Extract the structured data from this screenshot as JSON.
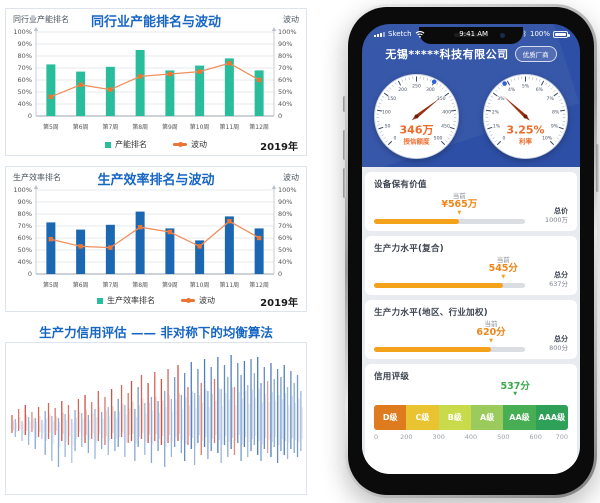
{
  "chart_data": [
    {
      "type": "bar",
      "title": "同行业产能排名与波动",
      "axis_left": "同行业产能排名",
      "axis_right": "波动",
      "categories": [
        "第5周",
        "第6周",
        "第7周",
        "第8周",
        "第9周",
        "第10周",
        "第11周",
        "第12周"
      ],
      "series": [
        {
          "name": "产能排名",
          "type": "bar",
          "values": [
            73,
            67,
            71,
            85,
            68,
            72,
            78,
            68
          ]
        },
        {
          "name": "波动",
          "type": "line",
          "values": [
            46,
            56,
            52,
            63,
            65,
            67,
            74,
            60
          ]
        }
      ],
      "yticks": [
        "100%",
        "90%",
        "80%",
        "70%",
        "60%",
        "50%",
        "40%",
        "0"
      ],
      "legend_bar": "产能排名",
      "legend_line": "波动",
      "year": "2019年",
      "bar_color": "#2ABD9B",
      "line_color": "#F0905C",
      "marker_color": "#EC7434"
    },
    {
      "type": "bar",
      "title": "生产效率排名与波动",
      "axis_left": "生产效率排名",
      "axis_right": "波动",
      "categories": [
        "第5周",
        "第6周",
        "第7周",
        "第8周",
        "第9周",
        "第10周",
        "第11周",
        "第12周"
      ],
      "series": [
        {
          "name": "生产效率排名",
          "type": "bar",
          "values": [
            73,
            67,
            71,
            82,
            68,
            58,
            78,
            68
          ]
        },
        {
          "name": "波动",
          "type": "line",
          "values": [
            59,
            53,
            52,
            69,
            65,
            53,
            74,
            60
          ]
        }
      ],
      "yticks": [
        "100%",
        "90%",
        "80%",
        "70%",
        "60%",
        "50%",
        "40%",
        "0"
      ],
      "legend_bar": "生产效率排名",
      "legend_line": "波动",
      "year": "2019年",
      "bar_color": "#1C67B1",
      "line_color": "#F0905C",
      "marker_color": "#EC7434",
      "legend_marker_color": "#2ABD9B"
    },
    {
      "type": "line",
      "title": "生产力信用评估 —— 非对称下的均衡算法",
      "blue": "#3B6FB5",
      "red": "#C8402F",
      "spikes": [
        [
          12,
          6,
          1,
          8
        ],
        [
          8,
          10,
          0,
          5
        ],
        [
          18,
          4,
          1,
          7
        ],
        [
          6,
          14,
          0,
          4
        ],
        [
          22,
          8,
          1,
          9
        ],
        [
          10,
          18,
          0,
          5
        ],
        [
          15,
          5,
          1,
          6
        ],
        [
          9,
          22,
          0,
          6
        ],
        [
          20,
          10,
          1,
          8
        ],
        [
          7,
          12,
          0,
          4
        ],
        [
          16,
          28,
          0,
          6
        ],
        [
          24,
          12,
          1,
          8
        ],
        [
          11,
          34,
          0,
          5
        ],
        [
          19,
          8,
          1,
          7
        ],
        [
          9,
          40,
          0,
          6
        ],
        [
          26,
          14,
          1,
          9
        ],
        [
          13,
          30,
          0,
          5
        ],
        [
          22,
          18,
          1,
          7
        ],
        [
          8,
          36,
          0,
          4
        ],
        [
          17,
          24,
          0,
          6
        ],
        [
          28,
          10,
          1,
          8
        ],
        [
          14,
          20,
          0,
          5
        ],
        [
          32,
          16,
          1,
          9
        ],
        [
          12,
          26,
          0,
          6
        ],
        [
          25,
          12,
          1,
          7
        ],
        [
          18,
          32,
          0,
          5
        ],
        [
          36,
          14,
          1,
          8
        ],
        [
          15,
          22,
          0,
          6
        ],
        [
          30,
          18,
          1,
          7
        ],
        [
          20,
          28,
          0,
          5
        ],
        [
          38,
          12,
          1,
          9
        ],
        [
          16,
          24,
          0,
          6
        ],
        [
          28,
          20,
          0,
          7
        ],
        [
          42,
          10,
          1,
          8
        ],
        [
          22,
          30,
          0,
          5
        ],
        [
          34,
          16,
          1,
          7
        ],
        [
          46,
          14,
          1,
          9
        ],
        [
          18,
          34,
          0,
          6
        ],
        [
          40,
          20,
          0,
          7
        ],
        [
          52,
          12,
          1,
          8
        ],
        [
          24,
          28,
          0,
          5
        ],
        [
          44,
          16,
          1,
          9
        ],
        [
          30,
          36,
          0,
          6
        ],
        [
          55,
          14,
          1,
          8
        ],
        [
          26,
          24,
          0,
          7
        ],
        [
          48,
          18,
          1,
          9
        ],
        [
          36,
          40,
          0,
          6
        ],
        [
          58,
          16,
          1,
          8
        ],
        [
          28,
          30,
          0,
          5
        ],
        [
          50,
          20,
          0,
          7
        ],
        [
          62,
          14,
          1,
          9
        ],
        [
          32,
          26,
          0,
          6
        ],
        [
          54,
          34,
          0,
          8
        ],
        [
          40,
          18,
          1,
          7
        ],
        [
          65,
          22,
          0,
          9
        ],
        [
          34,
          38,
          0,
          5
        ],
        [
          58,
          16,
          0,
          8
        ],
        [
          44,
          28,
          1,
          7
        ],
        [
          68,
          20,
          0,
          9
        ],
        [
          36,
          32,
          0,
          6
        ],
        [
          60,
          24,
          0,
          8
        ],
        [
          48,
          16,
          1,
          7
        ],
        [
          70,
          26,
          0,
          9
        ],
        [
          38,
          36,
          0,
          5
        ],
        [
          62,
          18,
          0,
          8
        ],
        [
          50,
          30,
          0,
          6
        ],
        [
          72,
          22,
          0,
          9
        ],
        [
          40,
          28,
          1,
          6
        ],
        [
          64,
          16,
          0,
          8
        ],
        [
          52,
          34,
          0,
          7
        ],
        [
          66,
          20,
          0,
          9
        ],
        [
          42,
          30,
          0,
          5
        ],
        [
          68,
          24,
          0,
          8
        ],
        [
          54,
          18,
          0,
          6
        ],
        [
          70,
          28,
          0,
          9
        ],
        [
          44,
          34,
          0,
          7
        ],
        [
          60,
          22,
          0,
          8
        ],
        [
          46,
          26,
          1,
          5
        ],
        [
          64,
          30,
          0,
          9
        ],
        [
          48,
          20,
          0,
          6
        ],
        [
          58,
          36,
          0,
          8
        ],
        [
          50,
          24,
          0,
          7
        ],
        [
          62,
          28,
          0,
          9
        ],
        [
          40,
          32,
          0,
          5
        ],
        [
          56,
          22,
          0,
          8
        ],
        [
          44,
          26,
          0,
          6
        ],
        [
          52,
          30,
          0,
          7
        ],
        [
          36,
          24,
          0,
          5
        ]
      ]
    }
  ],
  "phone": {
    "status": {
      "carrier": "Sketch",
      "time": "9:41 AM",
      "bluetooth": "ᛒ",
      "battery": "100%"
    },
    "header": {
      "company": "无锡*****科技有限公司",
      "badge": "优质厂商"
    },
    "gauges": [
      {
        "value": 346,
        "min": 0,
        "max": 500,
        "dot": 300,
        "value_label": "346万",
        "caption": "授信额度",
        "ticks": [
          "0",
          "50",
          "100",
          "150",
          "200",
          "250",
          "300",
          "350",
          "400",
          "450",
          "500"
        ]
      },
      {
        "value": 3.25,
        "min": 0,
        "max": 10,
        "dot": 3.8,
        "value_label": "3.25%",
        "caption": "利率",
        "ticks": [
          "0",
          "1%",
          "2%",
          "3%",
          "4%",
          "5%",
          "6%",
          "7%",
          "8%",
          "9%",
          "10%"
        ]
      }
    ],
    "sections": [
      {
        "title": "设备保有价值",
        "current_label": "当前",
        "current": "¥565万",
        "marker": "▼",
        "pct": 56.5,
        "total_label": "总价",
        "total": "1000万"
      },
      {
        "title": "生产力水平(复合)",
        "current_label": "当前",
        "current": "545分",
        "marker": "▼",
        "pct": 85.6,
        "total_label": "总分",
        "total": "637分"
      },
      {
        "title": "生产力水平(地区、行业加权)",
        "current_label": "当前",
        "current": "620分",
        "marker": "▼",
        "pct": 77.5,
        "total_label": "总分",
        "total": "800分"
      }
    ],
    "credit": {
      "title": "信用评级",
      "score": "537分",
      "marker": "▼",
      "score_pct": 72.8,
      "grades": [
        {
          "label": "D级",
          "color": "#DD7B1E"
        },
        {
          "label": "C级",
          "color": "#E9C431"
        },
        {
          "label": "B级",
          "color": "#C9DB4B"
        },
        {
          "label": "A级",
          "color": "#9BCB5C"
        },
        {
          "label": "AA级",
          "color": "#47AE53"
        },
        {
          "label": "AAA级",
          "color": "#2FA058"
        }
      ],
      "axis": [
        "0",
        "200",
        "300",
        "400",
        "500",
        "600",
        "700"
      ]
    }
  }
}
